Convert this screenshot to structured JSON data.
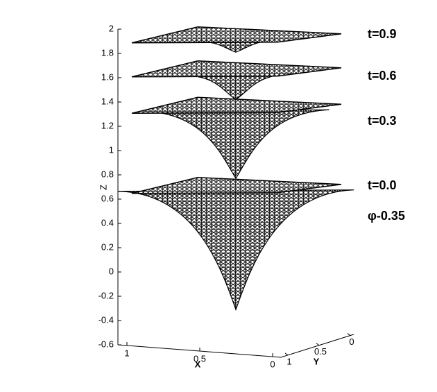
{
  "chart_data": {
    "type": "surface3d",
    "zlabel": "Z",
    "xlabel": "X",
    "ylabel": "Y",
    "zlim": [
      -0.6,
      2
    ],
    "zticks": [
      2,
      1.8,
      1.6,
      1.4,
      1.2,
      1,
      0.8,
      0.6,
      0.4,
      0.2,
      0,
      -0.2,
      -0.4,
      -0.6
    ],
    "xlim": [
      1,
      0
    ],
    "xticks": [
      1,
      0.5,
      0
    ],
    "ylim": [
      1,
      0
    ],
    "yticks": [
      1,
      0.5,
      0
    ],
    "color": "#000000",
    "surfaces": [
      {
        "label": "t=0.9",
        "level": 1.95,
        "min": 1.81
      },
      {
        "label": "t=0.6",
        "level": 1.67,
        "min": 1.42
      },
      {
        "label": "t=0.3",
        "level": 1.37,
        "min": 0.77
      },
      {
        "label": "t=0.0",
        "level": 0.71,
        "min": -0.31
      }
    ],
    "annotation": "φ-0.35"
  }
}
